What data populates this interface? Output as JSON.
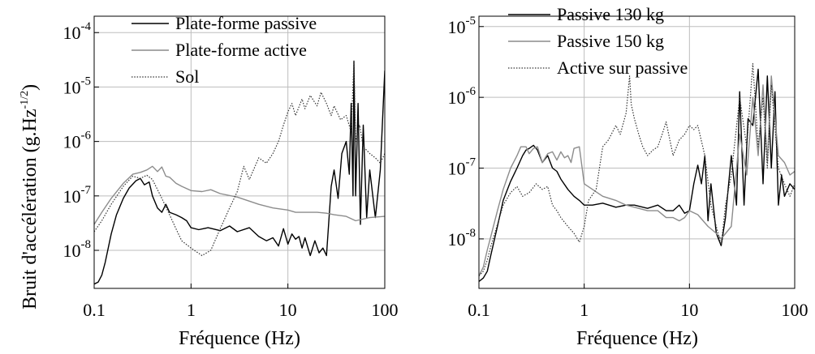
{
  "figure": {
    "ylabel": "Bruit d'accélération (g.Hz",
    "ylabel_exponent": "-1/2",
    "ylabel_close": ")"
  },
  "colors": {
    "black": "#000000",
    "gray": "#8c8c8c",
    "dotted": "#333333",
    "grid": "#bdbdbd"
  },
  "chart_data": [
    {
      "type": "line",
      "xlabel": "Fréquence (Hz)",
      "xscale": "log",
      "yscale": "log",
      "xlim": [
        0.1,
        100
      ],
      "ylim": [
        2e-09,
        0.0002
      ],
      "grid": true,
      "legend_position": "top-right",
      "x_ticks": [
        {
          "value": 0.1,
          "label": "0.1"
        },
        {
          "value": 1,
          "label": "1"
        },
        {
          "value": 10,
          "label": "10"
        },
        {
          "value": 100,
          "label": "100"
        }
      ],
      "y_ticks": [
        {
          "value": 1e-08,
          "base": "10",
          "exp": "-8"
        },
        {
          "value": 1e-07,
          "base": "10",
          "exp": "-7"
        },
        {
          "value": 1e-06,
          "base": "10",
          "exp": "-6"
        },
        {
          "value": 1e-05,
          "base": "10",
          "exp": "-5"
        },
        {
          "value": 0.0001,
          "base": "10",
          "exp": "-4"
        }
      ],
      "series": [
        {
          "name": "Plate-forme passive",
          "color": "#000000",
          "style": "solid",
          "x": [
            0.1,
            0.11,
            0.12,
            0.13,
            0.15,
            0.17,
            0.2,
            0.23,
            0.27,
            0.3,
            0.33,
            0.37,
            0.4,
            0.45,
            0.5,
            0.55,
            0.6,
            0.7,
            0.8,
            0.9,
            1,
            1.2,
            1.5,
            2,
            2.5,
            3,
            4,
            5,
            6,
            7,
            8,
            9,
            10,
            11,
            12,
            13,
            14,
            15,
            17,
            19,
            21,
            23,
            25,
            28,
            30,
            33,
            36,
            40,
            43,
            45,
            47,
            48,
            50,
            53,
            56,
            60,
            65,
            70,
            80,
            90,
            100
          ],
          "y": [
            2.4e-09,
            2.6e-09,
            3.5e-09,
            6e-09,
            2e-08,
            4.5e-08,
            9e-08,
            1.4e-07,
            1.9e-07,
            2.1e-07,
            1.6e-07,
            1.8e-07,
            1e-07,
            6e-08,
            5e-08,
            7e-08,
            5e-08,
            4.5e-08,
            4e-08,
            3.5e-08,
            2.6e-08,
            2.4e-08,
            2.6e-08,
            2.3e-08,
            2.8e-08,
            2.2e-08,
            2.6e-08,
            1.8e-08,
            1.5e-08,
            1.7e-08,
            1.2e-08,
            2.5e-08,
            1.3e-08,
            2e-08,
            1.6e-08,
            1.8e-08,
            1.1e-08,
            1.7e-08,
            8e-09,
            1.5e-08,
            9e-09,
            1.1e-08,
            8e-09,
            1.5e-07,
            3e-07,
            9e-08,
            6e-07,
            1e-06,
            2.5e-07,
            5e-06,
            1e-07,
            3e-05,
            1e-07,
            5e-06,
            3e-08,
            2e-06,
            4e-08,
            3e-07,
            4e-08,
            3e-07,
            2e-05
          ]
        },
        {
          "name": "Plate-forme active",
          "color": "#8c8c8c",
          "style": "solid",
          "x": [
            0.1,
            0.12,
            0.15,
            0.2,
            0.25,
            0.3,
            0.35,
            0.4,
            0.45,
            0.5,
            0.55,
            0.6,
            0.7,
            0.8,
            1,
            1.3,
            1.6,
            2,
            3,
            4,
            5,
            7,
            10,
            12,
            15,
            20,
            25,
            30,
            40,
            50,
            70,
            100
          ],
          "y": [
            3e-08,
            5e-08,
            9e-08,
            1.7e-07,
            2.5e-07,
            2.7e-07,
            3e-07,
            3.5e-07,
            2.8e-07,
            3.4e-07,
            2.3e-07,
            2.2e-07,
            1.7e-07,
            1.5e-07,
            1.25e-07,
            1.2e-07,
            1.3e-07,
            1.1e-07,
            9.5e-08,
            8e-08,
            7e-08,
            6e-08,
            5.5e-08,
            5e-08,
            5e-08,
            5e-08,
            4.8e-08,
            4.5e-08,
            4.2e-08,
            3.5e-08,
            4e-08,
            4.2e-08
          ]
        },
        {
          "name": "Sol",
          "color": "#333333",
          "style": "dotted",
          "x": [
            0.1,
            0.12,
            0.15,
            0.2,
            0.25,
            0.3,
            0.35,
            0.4,
            0.5,
            0.6,
            0.7,
            0.8,
            1,
            1.3,
            1.6,
            2,
            2.5,
            3,
            3.5,
            4,
            5,
            6,
            7,
            8,
            9,
            10,
            11,
            12,
            14,
            15,
            17,
            20,
            22,
            25,
            28,
            30,
            35,
            40,
            45,
            48,
            50,
            55,
            60,
            70,
            80,
            90,
            100
          ],
          "y": [
            2.2e-08,
            3.5e-08,
            7e-08,
            1.5e-07,
            2.3e-07,
            2.1e-07,
            2.4e-07,
            2e-07,
            9e-08,
            4.5e-08,
            2.5e-08,
            1.5e-08,
            1.1e-08,
            8e-09,
            1e-08,
            2.5e-08,
            6e-08,
            1.2e-07,
            3.5e-07,
            2e-07,
            5e-07,
            4e-07,
            6e-07,
            1e-06,
            2e-06,
            3.5e-06,
            5e-06,
            3e-06,
            6e-06,
            4e-06,
            7e-06,
            4.5e-06,
            8e-06,
            5e-06,
            3e-06,
            4.5e-06,
            2.5e-06,
            3e-06,
            1.5e-06,
            3e-05,
            1e-06,
            2e-06,
            8e-07,
            6e-07,
            5e-07,
            4e-07,
            6e-07
          ]
        }
      ]
    },
    {
      "type": "line",
      "xlabel": "Fréquence (Hz)",
      "xscale": "log",
      "yscale": "log",
      "xlim": [
        0.1,
        100
      ],
      "ylim": [
        2e-09,
        1.4e-05
      ],
      "grid": true,
      "legend_position": "top-right",
      "x_ticks": [
        {
          "value": 0.1,
          "label": "0.1"
        },
        {
          "value": 1,
          "label": "1"
        },
        {
          "value": 10,
          "label": "10"
        },
        {
          "value": 100,
          "label": "100"
        }
      ],
      "y_ticks": [
        {
          "value": 1e-08,
          "base": "10",
          "exp": "-8"
        },
        {
          "value": 1e-07,
          "base": "10",
          "exp": "-7"
        },
        {
          "value": 1e-06,
          "base": "10",
          "exp": "-6"
        },
        {
          "value": 1e-05,
          "base": "10",
          "exp": "-5"
        }
      ],
      "series": [
        {
          "name": "Passive 130 kg",
          "color": "#000000",
          "style": "solid",
          "x": [
            0.1,
            0.11,
            0.12,
            0.13,
            0.15,
            0.17,
            0.2,
            0.23,
            0.26,
            0.28,
            0.3,
            0.33,
            0.36,
            0.4,
            0.45,
            0.5,
            0.55,
            0.6,
            0.7,
            0.8,
            0.9,
            1,
            1.2,
            1.5,
            2,
            2.5,
            3,
            4,
            5,
            6,
            7,
            8,
            9,
            10,
            11,
            12,
            13,
            14,
            15,
            16,
            18,
            20,
            22,
            25,
            28,
            30,
            33,
            36,
            40,
            45,
            50,
            55,
            60,
            65,
            70,
            75,
            80,
            90,
            100
          ],
          "y": [
            2.5e-09,
            2.8e-09,
            3.5e-09,
            6e-09,
            1.5e-08,
            3.5e-08,
            6.5e-08,
            1e-07,
            1.5e-07,
            1.8e-07,
            1.9e-07,
            2.1e-07,
            1.8e-07,
            1.2e-07,
            1.5e-07,
            1e-07,
            9e-08,
            7e-08,
            5e-08,
            4e-08,
            3.5e-08,
            3e-08,
            3e-08,
            3.2e-08,
            2.8e-08,
            3e-08,
            3e-08,
            2.7e-08,
            3e-08,
            2.5e-08,
            2.5e-08,
            3e-08,
            2.3e-08,
            2.5e-08,
            6e-08,
            1.1e-07,
            6e-08,
            1.5e-07,
            1.8e-08,
            6e-08,
            1.2e-08,
            8e-09,
            2e-08,
            1.5e-07,
            3e-08,
            1.2e-06,
            3e-08,
            5e-07,
            4e-07,
            2.5e-06,
            6e-08,
            2e-06,
            1e-07,
            1.2e-06,
            3e-08,
            8e-08,
            4e-08,
            6e-08,
            5e-08
          ]
        },
        {
          "name": "Passive 150 kg",
          "color": "#8c8c8c",
          "style": "solid",
          "x": [
            0.1,
            0.11,
            0.12,
            0.13,
            0.15,
            0.17,
            0.2,
            0.23,
            0.25,
            0.28,
            0.3,
            0.33,
            0.36,
            0.4,
            0.45,
            0.5,
            0.55,
            0.6,
            0.65,
            0.7,
            0.75,
            0.8,
            0.9,
            1,
            1.2,
            1.5,
            2,
            2.5,
            3,
            4,
            5,
            6,
            7,
            8,
            9,
            10,
            12,
            15,
            18,
            20,
            25,
            30,
            35,
            40,
            45,
            50,
            55,
            60,
            70,
            80,
            90,
            100
          ],
          "y": [
            3e-09,
            4e-09,
            7e-09,
            1.1e-08,
            2.5e-08,
            5e-08,
            1e-07,
            1.5e-07,
            2e-07,
            2e-07,
            1.6e-07,
            1.9e-07,
            2e-07,
            1.2e-07,
            1.6e-07,
            1.7e-07,
            1.3e-07,
            1.7e-07,
            1.4e-07,
            1.5e-07,
            1.2e-07,
            1.9e-07,
            2e-07,
            6e-08,
            5e-08,
            4e-08,
            3.5e-08,
            3e-08,
            2.8e-08,
            2.5e-08,
            2.5e-08,
            2e-08,
            2e-08,
            1.8e-08,
            2e-08,
            2.5e-08,
            2.2e-08,
            1.5e-08,
            1.2e-08,
            1e-08,
            1.5e-08,
            3e-07,
            8e-08,
            1e-06,
            1.5e-07,
            1.5e-06,
            1.2e-07,
            2e-06,
            1.5e-07,
            1.2e-07,
            8e-08,
            9e-08
          ]
        },
        {
          "name": "Active sur passive",
          "color": "#333333",
          "style": "dotted",
          "x": [
            0.1,
            0.11,
            0.12,
            0.13,
            0.15,
            0.17,
            0.2,
            0.23,
            0.26,
            0.3,
            0.35,
            0.4,
            0.45,
            0.5,
            0.55,
            0.6,
            0.7,
            0.8,
            0.9,
            1,
            1.1,
            1.3,
            1.5,
            1.7,
            2,
            2.2,
            2.5,
            2.7,
            2.8,
            3,
            3.3,
            3.6,
            4,
            4.5,
            5,
            5.5,
            6,
            7,
            8,
            9,
            10,
            11,
            12,
            14,
            16,
            18,
            20,
            22,
            25,
            30,
            35,
            40,
            45,
            50,
            55,
            60,
            70,
            80,
            90,
            100
          ],
          "y": [
            3e-09,
            3.5e-09,
            5e-09,
            8e-09,
            1.6e-08,
            3e-08,
            4.5e-08,
            5.5e-08,
            4e-08,
            4.5e-08,
            6e-08,
            5e-08,
            5.5e-08,
            3e-08,
            2.5e-08,
            2e-08,
            1.5e-08,
            1.2e-08,
            9e-09,
            1.5e-08,
            3.5e-08,
            5e-08,
            2e-07,
            2.5e-07,
            4e-07,
            3e-07,
            6e-07,
            2e-06,
            8e-07,
            5e-07,
            3e-07,
            2e-07,
            1.5e-07,
            1.8e-07,
            2e-07,
            3e-07,
            4.5e-07,
            1.5e-07,
            2.5e-07,
            3e-07,
            4e-07,
            3.5e-07,
            4e-07,
            1.5e-07,
            3e-08,
            1.5e-08,
            8e-09,
            3e-08,
            8e-08,
            1e-06,
            2e-07,
            3e-06,
            2e-07,
            1e-06,
            1e-07,
            1.5e-06,
            1e-07,
            6e-08,
            4e-08,
            6e-08
          ]
        }
      ]
    }
  ]
}
